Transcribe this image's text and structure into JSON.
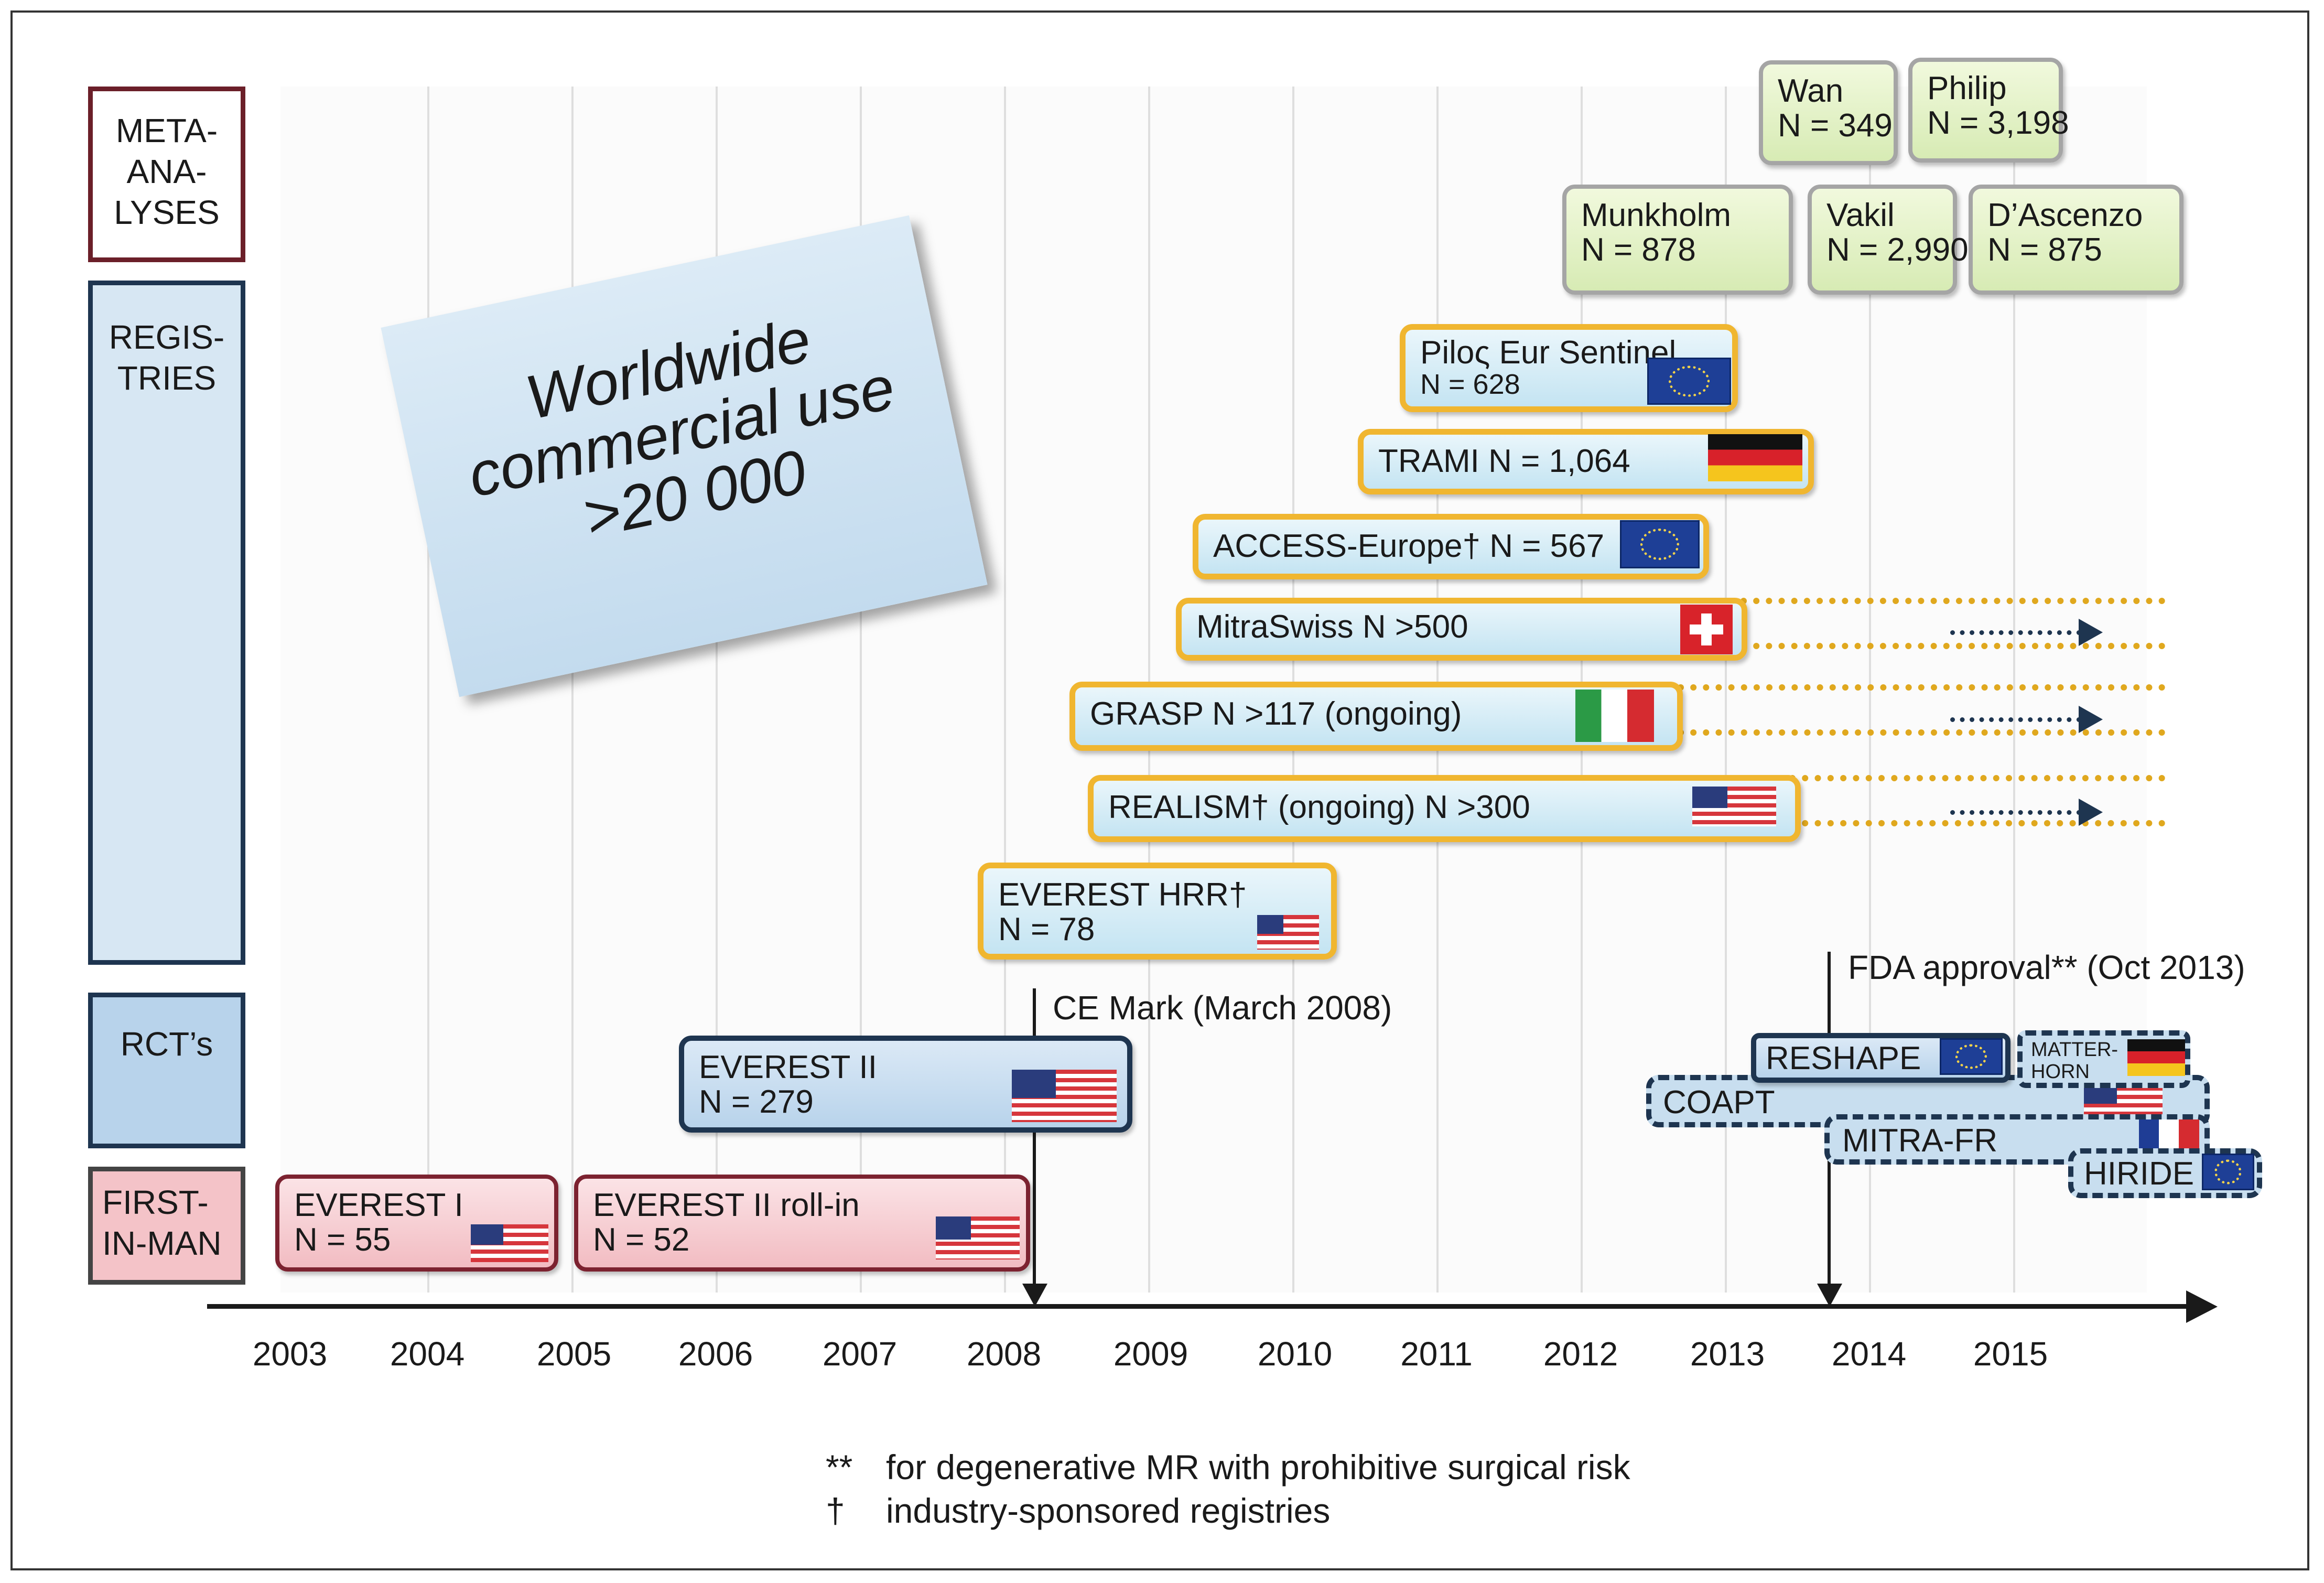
{
  "categories": [
    {
      "id": "meta",
      "label_lines": [
        "META-",
        "ANA-",
        "LYSES"
      ]
    },
    {
      "id": "registries",
      "label_lines": [
        "REGIS-",
        "TRIES"
      ]
    },
    {
      "id": "rcts",
      "label_lines": [
        "RCT’s"
      ]
    },
    {
      "id": "first_in_man",
      "label_lines": [
        "FIRST-",
        "IN-MAN"
      ]
    }
  ],
  "axis": {
    "years": [
      "2003",
      "2004",
      "2005",
      "2006",
      "2007",
      "2008",
      "2009",
      "2010",
      "2011",
      "2012",
      "2013",
      "2014",
      "2015"
    ]
  },
  "callout": {
    "lines": [
      "Worldwide",
      "commercial use",
      ">20 000"
    ]
  },
  "milestones": {
    "ce_mark": "CE Mark (March 2008)",
    "fda": "FDA approval** (Oct 2013)"
  },
  "meta_analyses": [
    {
      "name": "Wan",
      "n": "N = 349"
    },
    {
      "name": "Philip",
      "n": "N = 3,198"
    },
    {
      "name": "Munkholm",
      "n": "N = 878"
    },
    {
      "name": "Vakil",
      "n": "N = 2,990"
    },
    {
      "name": "D’Ascenzo",
      "n": "N = 875"
    }
  ],
  "registries": [
    {
      "line1": "Piloς Eur Sentinel",
      "line2": "N = 628",
      "flag": "eu-flag-icon"
    },
    {
      "line1": "TRAMI N = 1,064",
      "flag": "germany-flag-icon"
    },
    {
      "line1": "ACCESS-Europe† N = 567",
      "flag": "eu-flag-icon"
    },
    {
      "line1": "MitraSwiss N >500",
      "flag": "switzerland-flag-icon"
    },
    {
      "line1": "GRASP N >117 (ongoing)",
      "flag": "italy-flag-icon"
    },
    {
      "line1": "REALISM† (ongoing) N >300",
      "flag": "usa-flag-icon"
    },
    {
      "line1": "EVEREST HRR†",
      "line2": "N = 78",
      "flag": "usa-flag-icon"
    }
  ],
  "rcts": [
    {
      "line1": "EVEREST II",
      "line2": "N = 279",
      "flag": "usa-flag-icon"
    },
    {
      "line1": "RESHAPE",
      "flag": "eu-flag-icon"
    },
    {
      "line1": "MATTER-",
      "line2": "HORN",
      "flag": "germany-flag-icon"
    },
    {
      "line1": "COAPT",
      "flag": "usa-flag-icon"
    },
    {
      "line1": "MITRA-FR",
      "flag": "france-flag-icon"
    },
    {
      "line1": "HIRIDE",
      "flag": "eu-flag-icon"
    }
  ],
  "first_in_man": [
    {
      "line1": "EVEREST I",
      "line2": "N = 55",
      "flag": "usa-flag-icon"
    },
    {
      "line1": "EVEREST II roll-in",
      "line2": "N = 52",
      "flag": "usa-flag-icon"
    }
  ],
  "footnotes": [
    {
      "symbol": "**",
      "text": "for degenerative MR with prohibitive surgical risk"
    },
    {
      "symbol": "†",
      "text": "industry-sponsored registries"
    }
  ],
  "colors": {
    "orange_border": "#f0b630",
    "red_border": "#7c2230",
    "navy": "#1e3550",
    "bar_fill": "#c4e4f2"
  }
}
